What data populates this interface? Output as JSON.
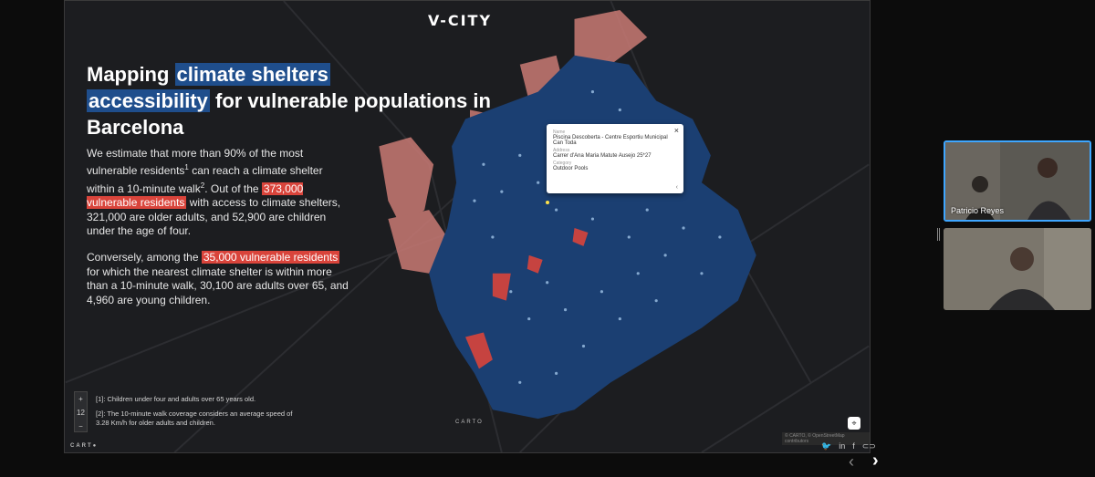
{
  "slide": {
    "logo": "V-CITY",
    "title": {
      "part1": "Mapping ",
      "hl1": "climate shelters",
      "hl2": "accessibility",
      "part2": " for vulnerable populations in Barcelona"
    },
    "paragraph1": {
      "a": "We estimate that more than 90% of the most vulnerable residents",
      "sup1": "1",
      "b": " can reach a climate shelter within a 10-minute walk",
      "sup2": "2",
      "c": ". Out of the ",
      "hl": "373,000 vulnerable residents",
      "d": " with access to climate shelters, 321,000 are older adults, and 52,900 are children under the age of four."
    },
    "paragraph2": {
      "a": "Conversely, among the ",
      "hl": "35,000 vulnerable residents",
      "b": " for which the nearest climate shelter is within more than a 10-minute walk, 30,100 are adults over 65, and 4,960 are young children."
    },
    "footnote1": "[1]: Children under four and adults over 65 years old.",
    "footnote2": "[2]: The 10-minute walk coverage considers an average speed of 3.28 Km/h for older adults and children.",
    "zoom": {
      "plus": "+",
      "level": "12",
      "minus": "−"
    },
    "carto_footer": "CART●",
    "carto_mark": "CARTO",
    "attribution": "© CARTO, © OpenStreetMap contributors",
    "popup": {
      "name_label": "Name",
      "name_value": "Piscina Descoberta - Centre Esportiu Municipal Can Toda",
      "address_label": "Address",
      "address_value": "Carrer d'Ana Maria Matute Ausejo 25*27",
      "category_label": "Category",
      "category_value": "Outdoor Pools",
      "close": "×",
      "chevron": "‹"
    },
    "locate_icon": "⌖"
  },
  "share_icons": [
    "twitter-icon",
    "linkedin-icon",
    "facebook-icon",
    "link-icon"
  ],
  "share_glyphs": [
    "🐦",
    "in",
    "f",
    "⊂⊃"
  ],
  "nav": {
    "prev": "‹",
    "next": "›"
  },
  "participants": [
    {
      "name": "Patricio Reyes"
    },
    {
      "name": ""
    }
  ],
  "colors": {
    "highlight_blue": "#1f4e8c",
    "highlight_red": "#d9443b",
    "map_coverage": "#1b3f72",
    "map_uncovered": "#c97a74"
  }
}
